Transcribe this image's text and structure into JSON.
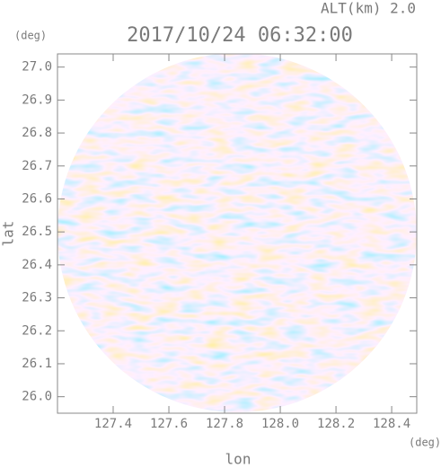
{
  "chart_data": {
    "type": "radar-ppi",
    "title": "2017/10/24 06:32:00",
    "subtitle": "ALT(km) 2.0",
    "x_label": "lon",
    "y_label": "lat",
    "x_unit": "(deg)",
    "y_unit": "(deg)",
    "xlim": [
      127.2,
      128.49
    ],
    "ylim": [
      25.95,
      27.04
    ],
    "xticks": [
      127.4,
      127.6,
      127.8,
      {
        "value": 128,
        "label": "128.0"
      },
      128.2,
      128.4
    ],
    "yticks": [
      {
        "value": 26,
        "label": "26.0"
      },
      26.1,
      26.2,
      26.3,
      26.4,
      26.5,
      26.6,
      26.7,
      26.8,
      26.9,
      {
        "value": 27,
        "label": "27.0"
      }
    ]
  }
}
